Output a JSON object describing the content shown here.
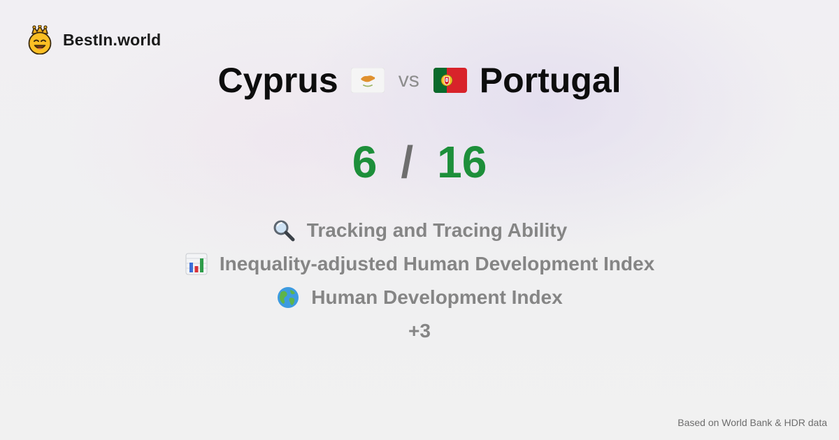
{
  "brand": {
    "name": "BestIn.world",
    "logo_icon": "smiling-crown-face-icon"
  },
  "comparison": {
    "left_country": "Cyprus",
    "left_flag": "cyprus-flag-icon",
    "vs_label": "vs",
    "right_country": "Portugal",
    "right_flag": "portugal-flag-icon"
  },
  "score": {
    "left": "6",
    "separator": "/",
    "right": "16"
  },
  "metrics": [
    {
      "icon": "magnifying-glass-icon",
      "label": "Tracking and Tracing Ability"
    },
    {
      "icon": "bar-chart-icon",
      "label": "Inequality-adjusted Human Development Index"
    },
    {
      "icon": "globe-icon",
      "label": "Human Development Index"
    }
  ],
  "more_count": "+3",
  "footer": {
    "source": "Based on World Bank & HDR data"
  },
  "colors": {
    "score": "#1d8f3a",
    "muted_text": "#858585",
    "title_text": "#0d0d0d"
  }
}
